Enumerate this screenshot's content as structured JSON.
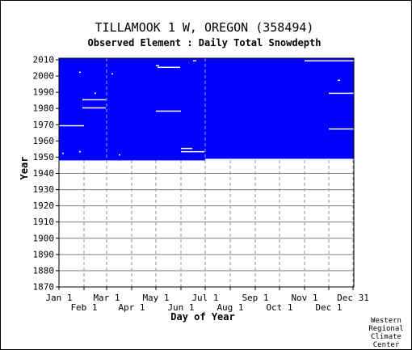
{
  "chart_data": {
    "type": "heatmap",
    "title": "TILLAMOOK 1 W, OREGON   (358494)",
    "subtitle": "Observed Element : Daily Total Snowdepth",
    "xlabel": "Day of Year",
    "ylabel": "Year",
    "xlim": [
      1,
      365
    ],
    "ylim": [
      1870,
      2011
    ],
    "x_ticks_upper": [
      {
        "label": "Jan 1",
        "day": 1
      },
      {
        "label": "Mar 1",
        "day": 60
      },
      {
        "label": "May 1",
        "day": 121
      },
      {
        "label": "Jul 1",
        "day": 182
      },
      {
        "label": "Sep 1",
        "day": 244
      },
      {
        "label": "Nov 1",
        "day": 305
      },
      {
        "label": "Dec 31",
        "day": 365
      }
    ],
    "x_ticks_lower": [
      {
        "label": "Feb 1",
        "day": 32
      },
      {
        "label": "Apr 1",
        "day": 91
      },
      {
        "label": "Jun 1",
        "day": 152
      },
      {
        "label": "Aug 1",
        "day": 213
      },
      {
        "label": "Oct 1",
        "day": 274
      },
      {
        "label": "Dec 1",
        "day": 335
      }
    ],
    "y_ticks": [
      1870,
      1880,
      1890,
      1900,
      1910,
      1920,
      1930,
      1940,
      1950,
      1960,
      1970,
      1980,
      1990,
      2000,
      2010
    ],
    "grid": true,
    "data_color": "#0000ff",
    "missing_color": "#ffffff",
    "data_block": {
      "day_start": 1,
      "day_end": 365,
      "year_start": 1948,
      "year_end": 2011
    },
    "partial_years": [
      {
        "year": 1948,
        "day_start": 182,
        "day_end": 365,
        "status": "missing"
      }
    ],
    "missing_segments": [
      {
        "year": 2009,
        "day_start": 305,
        "day_end": 365
      },
      {
        "year": 2009,
        "day_start": 167,
        "day_end": 170
      },
      {
        "year": 2006,
        "day_start": 121,
        "day_end": 124
      },
      {
        "year": 2005,
        "day_start": 123,
        "day_end": 150
      },
      {
        "year": 2002,
        "day_start": 26,
        "day_end": 27
      },
      {
        "year": 2001,
        "day_start": 66,
        "day_end": 67
      },
      {
        "year": 1997,
        "day_start": 346,
        "day_end": 348
      },
      {
        "year": 1989,
        "day_start": 45,
        "day_end": 46
      },
      {
        "year": 1989,
        "day_start": 335,
        "day_end": 365
      },
      {
        "year": 1985,
        "day_start": 30,
        "day_end": 58
      },
      {
        "year": 1980,
        "day_start": 30,
        "day_end": 58
      },
      {
        "year": 1978,
        "day_start": 121,
        "day_end": 151
      },
      {
        "year": 1969,
        "day_start": 1,
        "day_end": 31
      },
      {
        "year": 1967,
        "day_start": 335,
        "day_end": 365
      },
      {
        "year": 1955,
        "day_start": 152,
        "day_end": 165
      },
      {
        "year": 1953,
        "day_start": 26,
        "day_end": 27
      },
      {
        "year": 1953,
        "day_start": 152,
        "day_end": 180
      },
      {
        "year": 1952,
        "day_start": 5,
        "day_end": 6
      },
      {
        "year": 1951,
        "day_start": 75,
        "day_end": 76
      }
    ]
  },
  "credit": [
    "Western",
    "Regional",
    "Climate",
    "Center"
  ]
}
